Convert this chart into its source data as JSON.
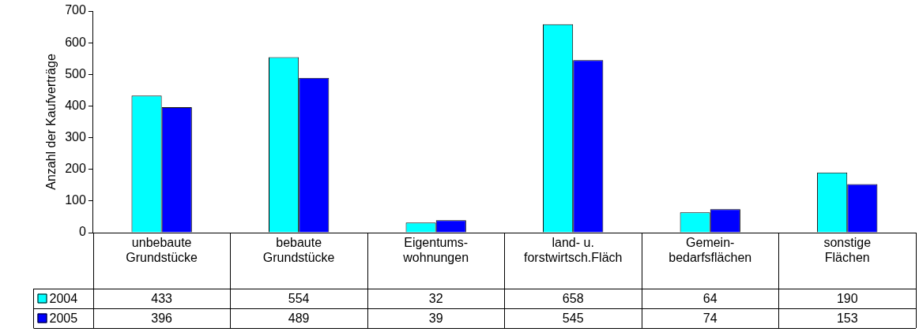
{
  "chart_data": {
    "type": "bar",
    "ylabel": "Anzahl der Kaufverträge",
    "categories": [
      "unbebaute\nGrundstücke",
      "bebaute\nGrundstücke",
      "Eigentums-\nwohnungen",
      "land- u.\nforstwirtsch.Fläch",
      "Gemein-\nbedarfsflächen",
      "sonstige\nFlächen"
    ],
    "series": [
      {
        "name": "2004",
        "color": "#00ffff",
        "values": [
          433,
          554,
          32,
          658,
          64,
          190
        ]
      },
      {
        "name": "2005",
        "color": "#0000ff",
        "values": [
          396,
          489,
          39,
          545,
          74,
          153
        ]
      }
    ],
    "ylim": [
      0,
      700
    ],
    "yticks": [
      0,
      100,
      200,
      300,
      400,
      500,
      600,
      700
    ],
    "grid": false,
    "legend": "bottom",
    "data_labels": true
  }
}
